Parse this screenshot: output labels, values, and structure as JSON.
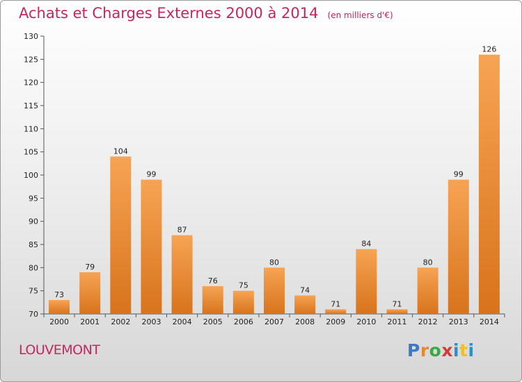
{
  "chart_data": {
    "type": "bar",
    "title": "Achats et Charges Externes 2000 à 2014",
    "subtitle": "(en milliers d'€)",
    "categories": [
      "2000",
      "2001",
      "2002",
      "2003",
      "2004",
      "2005",
      "2006",
      "2007",
      "2008",
      "2009",
      "2010",
      "2011",
      "2012",
      "2013",
      "2014"
    ],
    "values": [
      73,
      79,
      104,
      99,
      87,
      76,
      75,
      80,
      74,
      71,
      84,
      71,
      80,
      99,
      126
    ],
    "ylim": [
      70,
      130
    ],
    "yticks": [
      70,
      75,
      80,
      85,
      90,
      95,
      100,
      105,
      110,
      115,
      120,
      125,
      130
    ],
    "xlabel": "",
    "ylabel": "",
    "grid": false,
    "colors": {
      "bar_top": "#f6a454",
      "bar_bottom": "#d8731c",
      "title": "#c8245f"
    }
  },
  "footer": {
    "place_name": "LOUVEMONT",
    "logo_letters": [
      {
        "ch": "P",
        "color": "#3a78c8"
      },
      {
        "ch": "r",
        "color": "#e8882a"
      },
      {
        "ch": "o",
        "color": "#3aa845"
      },
      {
        "ch": "x",
        "color": "#d43a3a"
      },
      {
        "ch": "i",
        "color": "#2a8fd0"
      },
      {
        "ch": "t",
        "color": "#f0c020"
      },
      {
        "ch": "i",
        "color": "#2a8fd0"
      }
    ]
  }
}
